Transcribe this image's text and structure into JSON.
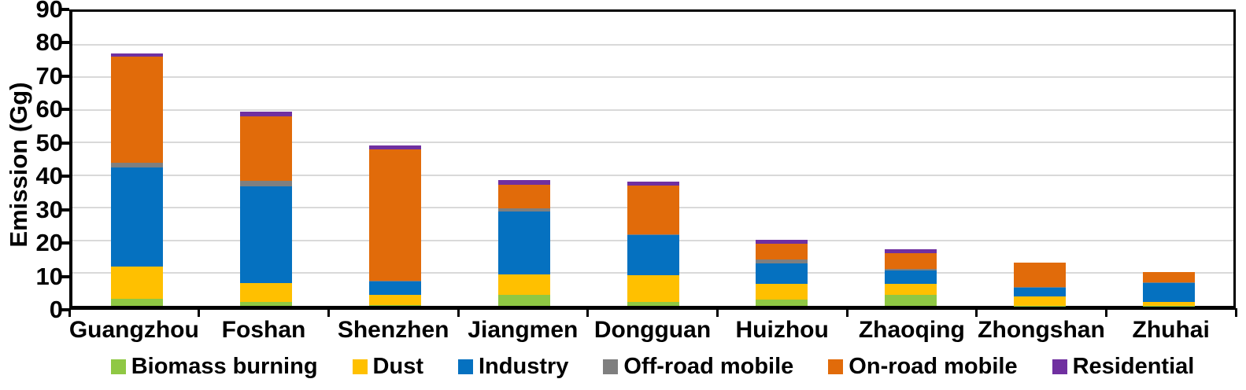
{
  "chart_data": {
    "type": "bar",
    "stacked": true,
    "title": "",
    "xlabel": "",
    "ylabel": "Emission (Gg)",
    "ylim": [
      0,
      90
    ],
    "yticks": [
      0,
      10,
      20,
      30,
      40,
      50,
      60,
      70,
      80,
      90
    ],
    "grid": "horizontal",
    "gridline_color": "#D9D9D9",
    "legend_position": "bottom",
    "categories": [
      "Guangzhou",
      "Foshan",
      "Shenzhen",
      "Jiangmen",
      "Dongguan",
      "Huizhou",
      "Zhaoqing",
      "Zhongshan",
      "Zhuhai"
    ],
    "series": [
      {
        "name": "Biomass burning",
        "color": "#8FC844",
        "values": [
          2.2,
          1.1,
          0.2,
          3.4,
          1.1,
          2.0,
          3.3,
          0.1,
          0.1
        ]
      },
      {
        "name": "Dust",
        "color": "#FFC000",
        "values": [
          9.9,
          5.9,
          3.2,
          6.2,
          8.2,
          4.7,
          3.4,
          2.9,
          1.2
        ]
      },
      {
        "name": "Industry",
        "color": "#0571C0",
        "values": [
          30.2,
          29.5,
          4.1,
          19.4,
          12.3,
          6.4,
          4.2,
          2.6,
          5.8
        ]
      },
      {
        "name": "Off-road mobile",
        "color": "#7F7F7F",
        "values": [
          1.5,
          1.8,
          0.3,
          0.9,
          0.3,
          1.2,
          0.3,
          0.2,
          0.2
        ]
      },
      {
        "name": "On-road mobile",
        "color": "#E16B0A",
        "values": [
          32.4,
          19.7,
          40.0,
          7.1,
          14.9,
          4.7,
          5.0,
          7.4,
          3.1
        ]
      },
      {
        "name": "Residential",
        "color": "#7030A0",
        "values": [
          1.0,
          1.4,
          1.2,
          1.4,
          1.2,
          1.1,
          1.1,
          0,
          0
        ]
      }
    ],
    "totals": [
      77.2,
      59.4,
      49.0,
      38.4,
      38.0,
      20.1,
      17.3,
      13.2,
      10.4
    ]
  }
}
